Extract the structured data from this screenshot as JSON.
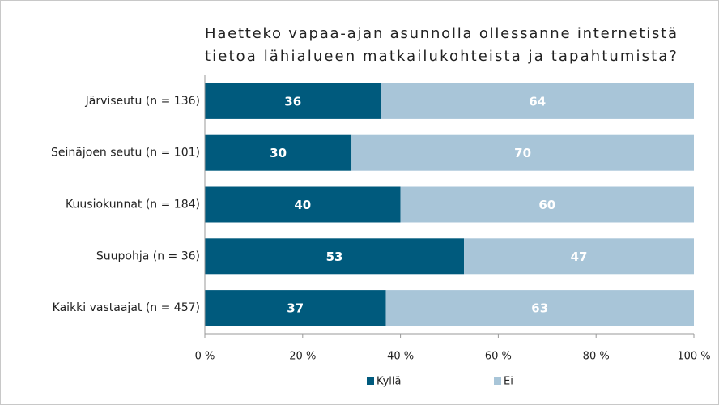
{
  "chart_data": {
    "type": "stacked_barh",
    "title": [
      "Haetteko vapaa-ajan asunnolla ollessanne internetistä",
      "tietoa lähialueen matkailukohteista ja tapahtumista?"
    ],
    "categories": [
      "Järviseutu (n = 136)",
      "Seinäjoen seutu (n = 101)",
      "Kuusiokunnat (n = 184)",
      "Suupohja (n = 36)",
      "Kaikki vastaajat (n = 457)"
    ],
    "series": [
      {
        "name": "Kyllä",
        "color": "#005a7d",
        "values": [
          36,
          30,
          40,
          53,
          37
        ]
      },
      {
        "name": "Ei",
        "color": "#a8c5d8",
        "values": [
          64,
          70,
          60,
          47,
          63
        ]
      }
    ],
    "xlim": [
      0,
      100
    ],
    "xticks": [
      {
        "value": 0,
        "label": "0 %"
      },
      {
        "value": 20,
        "label": "20 %"
      },
      {
        "value": 40,
        "label": "40 %"
      },
      {
        "value": 60,
        "label": "60 %"
      },
      {
        "value": 80,
        "label": "80 %"
      },
      {
        "value": 100,
        "label": "100 %"
      }
    ],
    "legend": "bottom"
  }
}
